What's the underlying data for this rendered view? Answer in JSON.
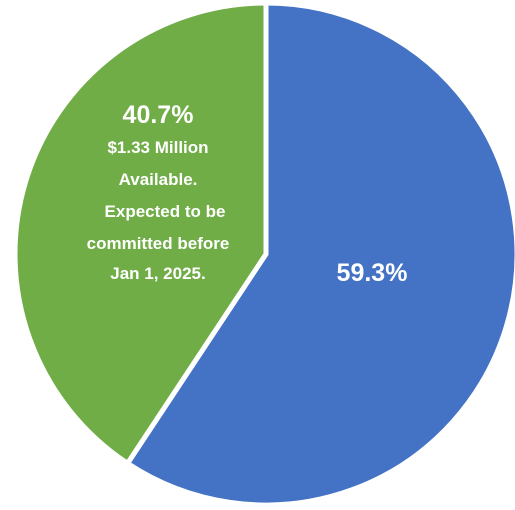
{
  "chart_data": {
    "type": "pie",
    "title": "",
    "start_angle_deg": 0,
    "direction": "clockwise",
    "slices": [
      {
        "value": 59.3,
        "label": "59.3%",
        "note": [],
        "color": "#4472C4"
      },
      {
        "value": 40.7,
        "label": "40.7%",
        "note": [
          "$1.33 Million",
          "Available.",
          "Expected to be",
          "committed before",
          "Jan 1, 2025."
        ],
        "color": "#70AD47"
      }
    ],
    "legend": "none"
  }
}
